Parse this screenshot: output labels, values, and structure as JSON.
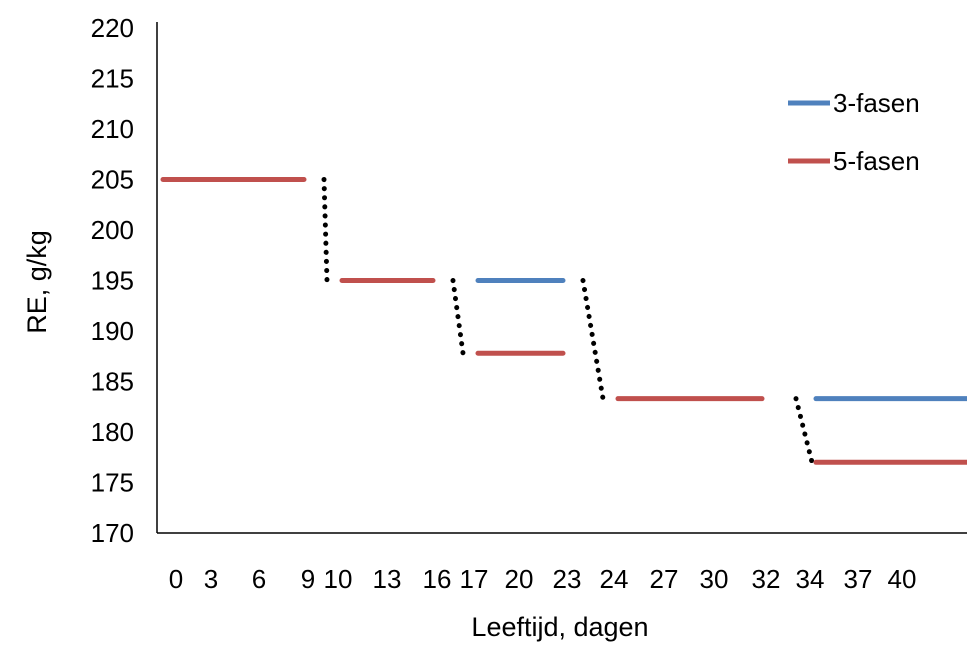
{
  "chart_data": {
    "type": "line",
    "xlabel": "Leeftijd, dagen",
    "ylabel": "RE, g/kg",
    "ylim": [
      170,
      220
    ],
    "y_ticks": [
      170,
      175,
      180,
      185,
      190,
      195,
      200,
      205,
      210,
      215,
      220
    ],
    "categories": [
      "0",
      "3",
      "6",
      "9",
      "10",
      "13",
      "16",
      "17",
      "20",
      "23",
      "24",
      "27",
      "30",
      "32",
      "34",
      "37",
      "40"
    ],
    "grid": false,
    "legend_position": "right",
    "series": [
      {
        "name": "3-fasen",
        "color": "#4f81bd",
        "segments": [
          {
            "from": "17",
            "to": "23",
            "value": 195
          },
          {
            "from": "32",
            "to": "40",
            "value": 183.3
          }
        ]
      },
      {
        "name": "5-fasen",
        "color": "#c0504d",
        "segments": [
          {
            "from": "0",
            "to": "9",
            "value": 205
          },
          {
            "from": "10",
            "to": "16",
            "value": 195
          },
          {
            "from": "17",
            "to": "23",
            "value": 187.8
          },
          {
            "from": "24",
            "to": "32",
            "value": 183.3
          },
          {
            "from": "32",
            "to": "40",
            "value": 177
          }
        ]
      }
    ],
    "transitions": [
      {
        "from": "9",
        "to": "10",
        "y_start": 205,
        "y_end": 195
      },
      {
        "from": "16",
        "to": "17",
        "y_start": 195,
        "y_end": 187.8
      },
      {
        "from": "23",
        "to": "24",
        "y_start": 195,
        "y_end": 183.3
      },
      {
        "from": "32",
        "to": "32",
        "y_start": 183.3,
        "y_end": 177
      }
    ],
    "transition_color": "#000000"
  }
}
